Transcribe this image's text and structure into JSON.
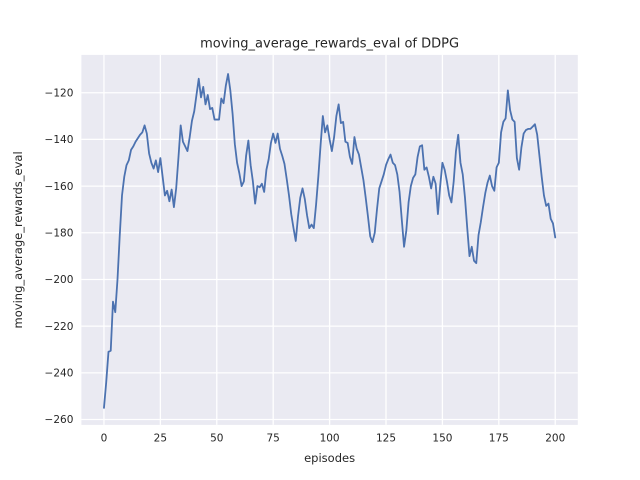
{
  "figure": {
    "title": "moving_average_rewards_eval of DDPG",
    "xlabel": "episodes",
    "ylabel": "moving_average_rewards_eval"
  },
  "chart_data": {
    "type": "line",
    "title": "moving_average_rewards_eval of DDPG",
    "xlabel": "episodes",
    "ylabel": "moving_average_rewards_eval",
    "x_ticks": [
      0,
      25,
      50,
      75,
      100,
      125,
      150,
      175,
      200
    ],
    "y_ticks": [
      -120,
      -140,
      -160,
      -180,
      -200,
      -220,
      -240,
      -260
    ],
    "xlim": [
      -10,
      210
    ],
    "ylim": [
      -262.3,
      -103.8
    ],
    "grid": true,
    "legend": "none",
    "plot_bg_color": "#eaeaf2",
    "grid_color": "#ffffff",
    "line_color": "#4c72b0",
    "text_color": "#262626",
    "series": [
      {
        "name": "moving_average_rewards_eval",
        "x_start": 0,
        "x_step": 1,
        "values": [
          -255,
          -244,
          -231,
          -230.5,
          -209.5,
          -214,
          -200,
          -181,
          -164,
          -156,
          -151,
          -149,
          -144.5,
          -143,
          -141,
          -139.5,
          -138,
          -137,
          -134,
          -137.5,
          -146,
          -150,
          -152.5,
          -149,
          -154,
          -148,
          -156,
          -164,
          -162,
          -166.5,
          -161.5,
          -169,
          -161,
          -148,
          -134,
          -141,
          -143,
          -145,
          -139,
          -132,
          -128,
          -121,
          -114,
          -122,
          -117.5,
          -125,
          -121,
          -127,
          -126.5,
          -131.5,
          -131.5,
          -131.5,
          -122.5,
          -124.5,
          -117,
          -112,
          -119,
          -129,
          -142,
          -150,
          -154.5,
          -160,
          -158,
          -147,
          -140.5,
          -151,
          -158,
          -167.5,
          -160,
          -160.5,
          -159,
          -162.5,
          -153,
          -148.5,
          -141.5,
          -137.5,
          -141.5,
          -137.5,
          -144,
          -147,
          -150.5,
          -157,
          -164,
          -172,
          -178,
          -183.5,
          -173,
          -165,
          -161,
          -165.5,
          -172.5,
          -178,
          -176.5,
          -178,
          -168,
          -156,
          -142.5,
          -130,
          -137,
          -134,
          -140,
          -145,
          -139,
          -130,
          -125,
          -133,
          -132.5,
          -141,
          -141.5,
          -147.5,
          -150.5,
          -139,
          -144,
          -146.5,
          -152,
          -157.5,
          -165,
          -173,
          -181.5,
          -184,
          -180,
          -170,
          -161,
          -158,
          -155,
          -151,
          -148.5,
          -146.5,
          -150,
          -151,
          -155,
          -162.5,
          -174.5,
          -186,
          -179,
          -167,
          -160,
          -156.5,
          -155,
          -147.5,
          -143,
          -142.5,
          -153,
          -152,
          -156,
          -161,
          -156,
          -159,
          -172,
          -160,
          -150,
          -153,
          -158,
          -164,
          -167,
          -158,
          -145,
          -138,
          -150,
          -155,
          -165,
          -178,
          -190,
          -186,
          -192,
          -193,
          -181,
          -175.5,
          -169,
          -163,
          -158.5,
          -155.5,
          -160,
          -162,
          -152,
          -150,
          -137,
          -132.5,
          -131,
          -119,
          -127.5,
          -131.5,
          -132.5,
          -148,
          -153,
          -143.5,
          -137.5,
          -136,
          -135.5,
          -135.5,
          -134.5,
          -133.5,
          -138,
          -147,
          -156,
          -164,
          -168.5,
          -167.5,
          -174,
          -176,
          -182
        ]
      }
    ]
  }
}
